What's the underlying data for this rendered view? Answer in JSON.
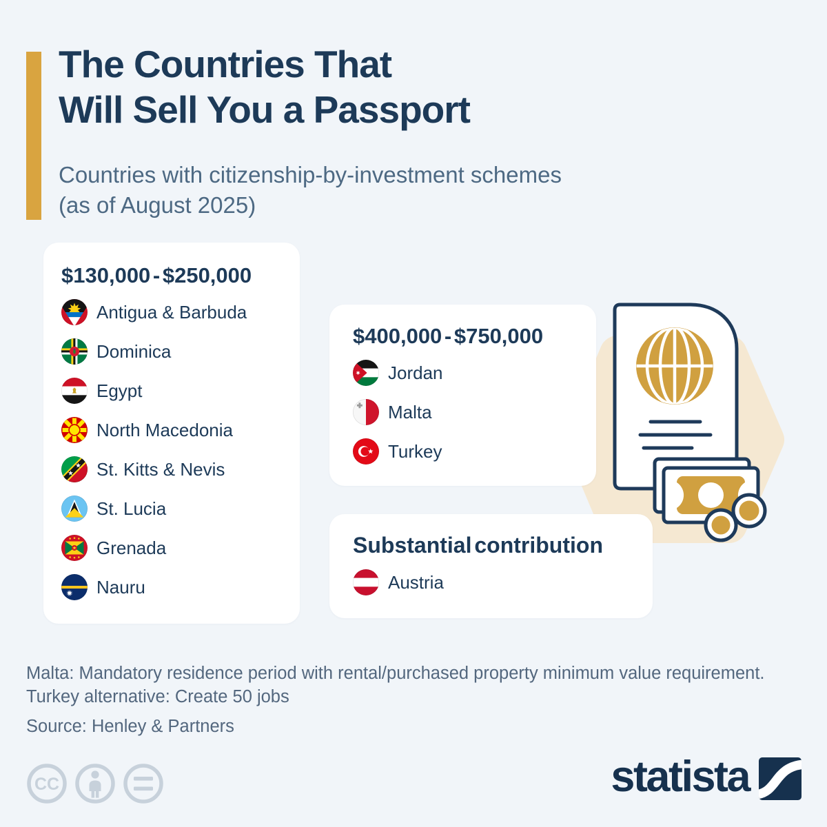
{
  "colors": {
    "background": "#f1f5f9",
    "navy": "#1d3a58",
    "slate": "#4d6983",
    "note_gray": "#53677e",
    "gold": "#d9a440",
    "illustration_gold": "#d0a040",
    "beige": "#f5e8d2",
    "card_white": "#ffffff",
    "license_gray": "#c7d1db",
    "brand_navy": "#16314e"
  },
  "header": {
    "title_line1": "The Countries That",
    "title_line2": "Will Sell You a Passport",
    "subtitle_line1": "Countries with citizenship-by-investment schemes",
    "subtitle_line2": "(as of August 2025)"
  },
  "tiers": [
    {
      "heading": "$130,000 - $250,000",
      "countries": [
        {
          "name": "Antigua & Barbuda",
          "flag": "antigua-barbuda"
        },
        {
          "name": "Dominica",
          "flag": "dominica"
        },
        {
          "name": "Egypt",
          "flag": "egypt"
        },
        {
          "name": "North Macedonia",
          "flag": "north-macedonia"
        },
        {
          "name": "St. Kitts & Nevis",
          "flag": "st-kitts-nevis"
        },
        {
          "name": "St. Lucia",
          "flag": "st-lucia"
        },
        {
          "name": "Grenada",
          "flag": "grenada"
        },
        {
          "name": "Nauru",
          "flag": "nauru"
        }
      ]
    },
    {
      "heading": "$400,000 - $750,000",
      "countries": [
        {
          "name": "Jordan",
          "flag": "jordan"
        },
        {
          "name": "Malta",
          "flag": "malta"
        },
        {
          "name": "Turkey",
          "flag": "turkey"
        }
      ]
    },
    {
      "heading": "Substantial contribution",
      "countries": [
        {
          "name": "Austria",
          "flag": "austria"
        }
      ]
    }
  ],
  "notes": {
    "line1": "Malta: Mandatory residence period with rental/purchased property minimum value requirement.",
    "line2": "Turkey alternative: Create 50 jobs",
    "source": "Source: Henley & Partners"
  },
  "license": {
    "icons": [
      "cc-icon",
      "attribution-icon",
      "no-derivatives-icon"
    ]
  },
  "brand": {
    "wordmark": "statista",
    "logo": "statista-s-curve-logo"
  },
  "illustration": {
    "name": "passport-with-globe-banknotes-and-coins"
  },
  "chart_data": {
    "type": "table",
    "title": "The Countries That Will Sell You a Passport",
    "subtitle": "Countries with citizenship-by-investment schemes (as of August 2025)",
    "groups": [
      {
        "price_range": "$130,000 - $250,000",
        "countries": [
          "Antigua & Barbuda",
          "Dominica",
          "Egypt",
          "North Macedonia",
          "St. Kitts & Nevis",
          "St. Lucia",
          "Grenada",
          "Nauru"
        ]
      },
      {
        "price_range": "$400,000 - $750,000",
        "countries": [
          "Jordan",
          "Malta",
          "Turkey"
        ]
      },
      {
        "price_range": "Substantial contribution",
        "countries": [
          "Austria"
        ]
      }
    ],
    "notes": [
      "Malta: Mandatory residence period with rental/purchased property minimum value requirement.",
      "Turkey alternative: Create 50 jobs"
    ],
    "source": "Henley & Partners"
  }
}
